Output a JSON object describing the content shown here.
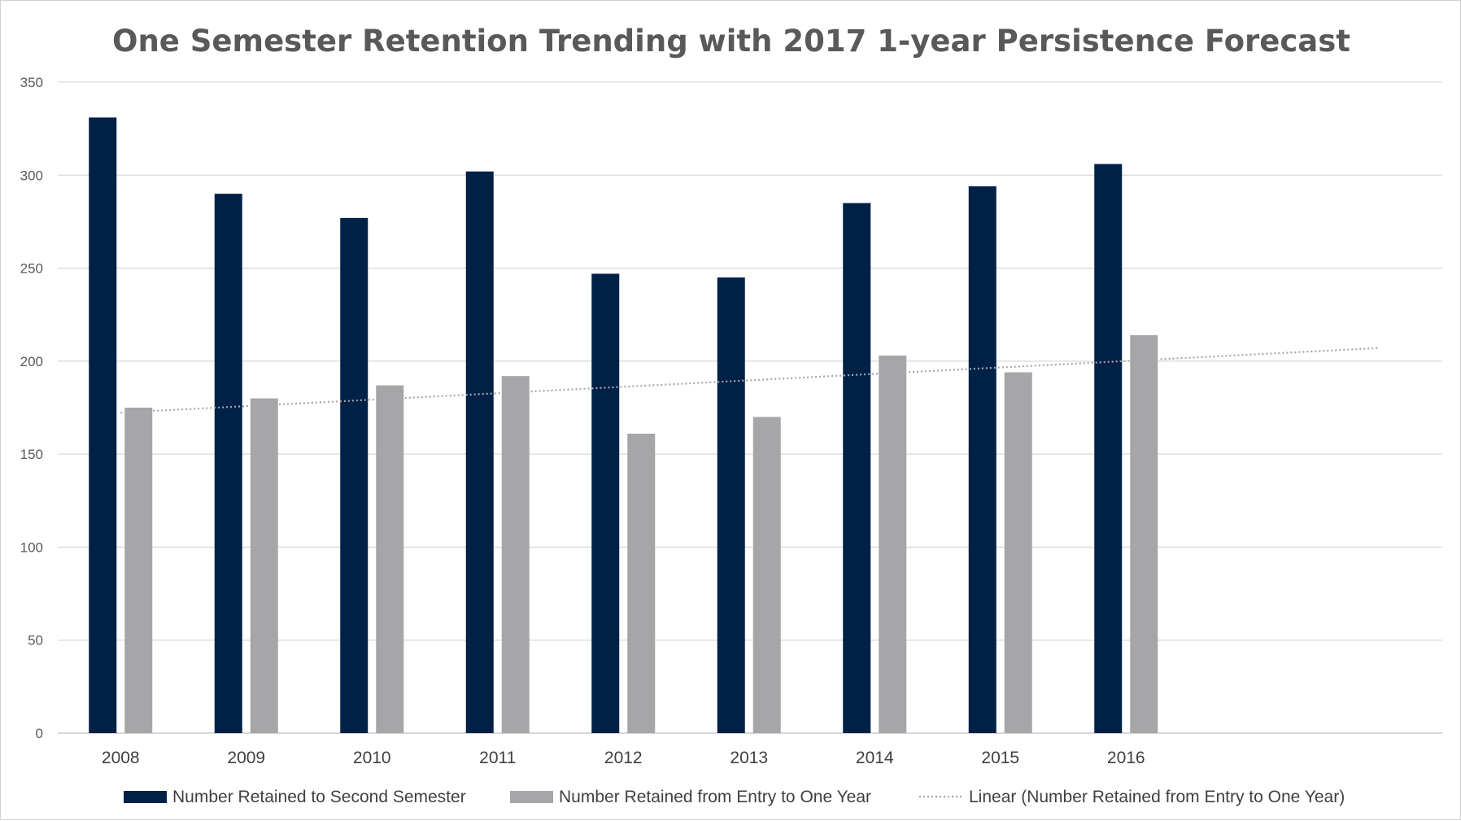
{
  "chart_data": {
    "type": "bar",
    "title": "One Semester Retention Trending with 2017 1-year Persistence Forecast",
    "categories": [
      "2008",
      "2009",
      "2010",
      "2011",
      "2012",
      "2013",
      "2014",
      "2015",
      "2016"
    ],
    "series": [
      {
        "name": "Number Retained to Second Semester",
        "color": "#002147",
        "values": [
          331,
          290,
          277,
          302,
          247,
          245,
          285,
          294,
          306
        ]
      },
      {
        "name": "Number Retained from Entry to One Year",
        "color": "#a6a6a8",
        "values": [
          175,
          180,
          187,
          192,
          161,
          170,
          203,
          194,
          214
        ]
      }
    ],
    "trendline": {
      "name": "Linear (Number Retained from Entry to One Year)",
      "type": "linear",
      "series": "Number Retained from Entry to One Year",
      "forecast_periods": 2,
      "color": "#a6a6a8"
    },
    "ylim": [
      0,
      350
    ],
    "yticks": [
      0,
      50,
      100,
      150,
      200,
      250,
      300,
      350
    ],
    "xlabel": "",
    "ylabel": "",
    "grid": true,
    "legend_position": "bottom"
  }
}
